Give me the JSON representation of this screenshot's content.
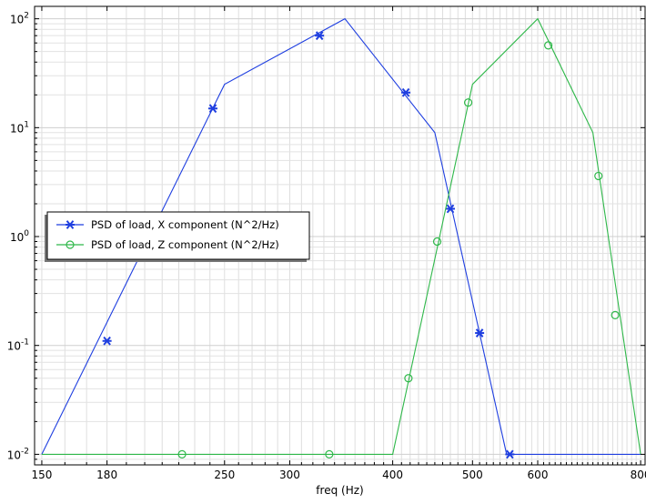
{
  "chart_data": {
    "type": "line",
    "xlabel": "freq (Hz)",
    "ylabel": "",
    "xscale": "log",
    "yscale": "log",
    "xlim": [
      147,
      810
    ],
    "ylim": [
      0.008,
      130
    ],
    "grid": true,
    "legend_placement": "left-middle",
    "x_ticks": [
      150,
      180,
      250,
      300,
      400,
      500,
      600,
      800
    ],
    "y_ticks": [
      {
        "value": 0.01,
        "base": "10",
        "exp": "-2"
      },
      {
        "value": 0.1,
        "base": "10",
        "exp": "-1"
      },
      {
        "value": 1,
        "base": "10",
        "exp": "0"
      },
      {
        "value": 10,
        "base": "10",
        "exp": "1"
      },
      {
        "value": 100,
        "base": "10",
        "exp": "2"
      }
    ],
    "series": [
      {
        "name": "PSD of load, X component (N^2/Hz)",
        "color": "#1f3fe0",
        "marker": "asterisk",
        "x": [
          150,
          250,
          350,
          450,
          550,
          800
        ],
        "y": [
          0.01,
          25,
          100,
          9,
          0.01,
          0.01
        ],
        "marker_x": [
          180,
          242,
          326,
          415,
          470,
          510,
          555
        ],
        "marker_y": [
          0.11,
          15,
          70,
          21,
          1.8,
          0.13,
          0.01
        ]
      },
      {
        "name": "PSD of load, Z component (N^2/Hz)",
        "color": "#2fb84a",
        "marker": "circle",
        "x": [
          150,
          400,
          500,
          600,
          700,
          800
        ],
        "y": [
          0.01,
          0.01,
          25,
          100,
          9,
          0.01
        ],
        "marker_x": [
          222,
          335,
          418,
          453,
          494,
          618,
          711,
          745
        ],
        "marker_y": [
          0.01,
          0.01,
          0.05,
          0.9,
          17,
          57,
          3.6,
          0.19
        ]
      }
    ]
  }
}
